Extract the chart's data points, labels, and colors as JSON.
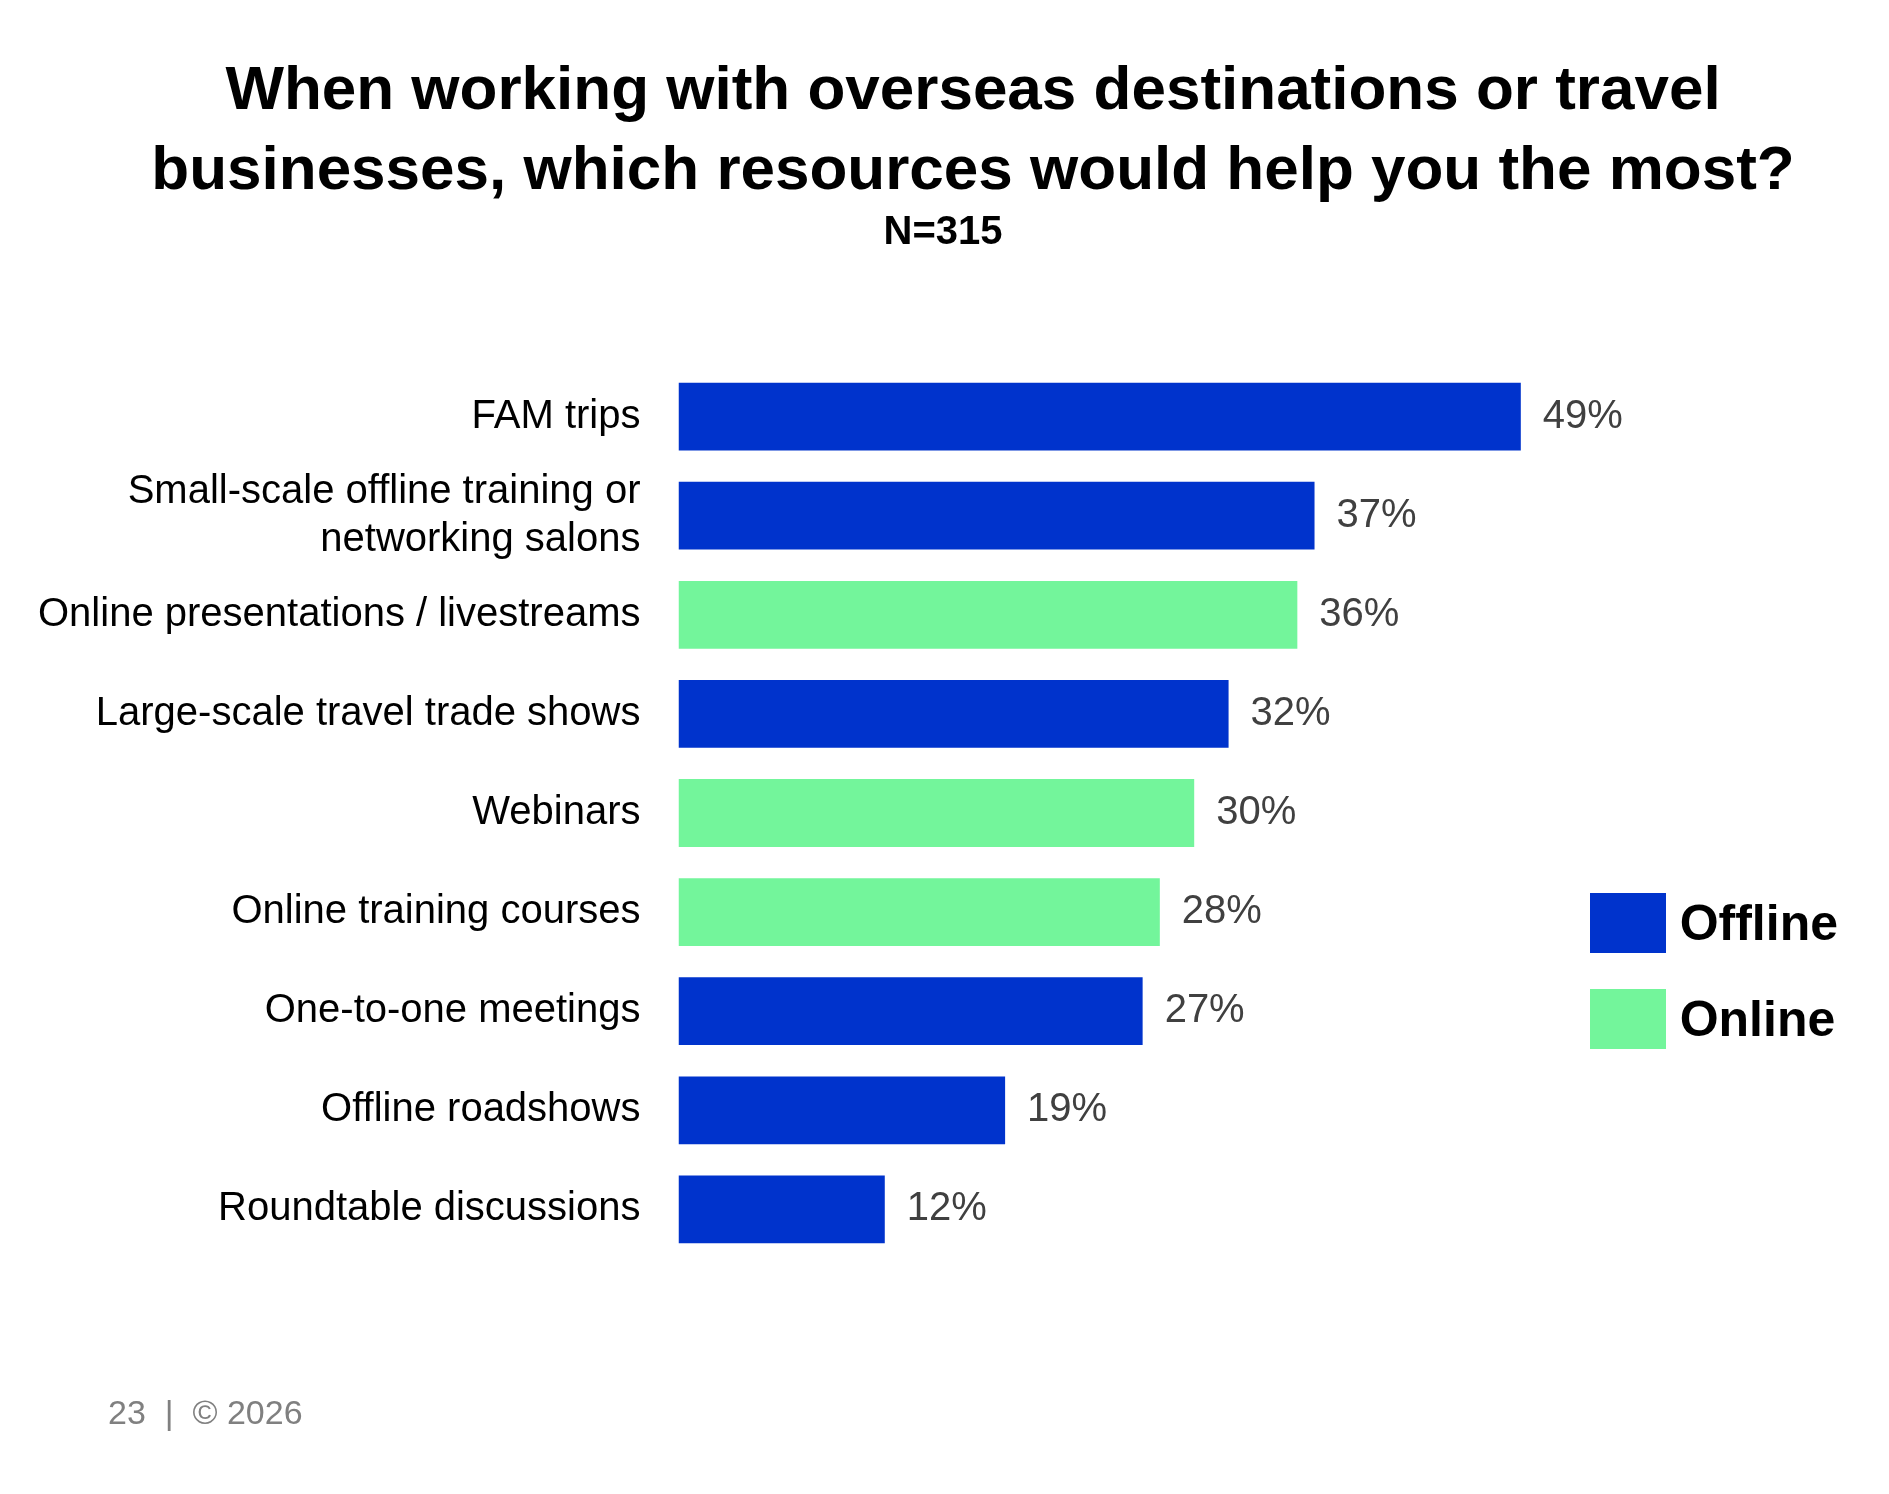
{
  "chart_data": {
    "type": "bar",
    "orientation": "horizontal",
    "stacked": true,
    "title": "When working with overseas destinations or travel businesses, which resources would help you the most?",
    "subtitle": "N=315",
    "categories": [
      "FAM trips",
      "Small-scale offline training or networking salons",
      "Online presentations / livestreams",
      "Large-scale travel trade shows",
      "Webinars",
      "Online training courses",
      "One-to-one meetings",
      "Offline roadshows",
      "Roundtable discussions"
    ],
    "series": [
      {
        "name": "Offline",
        "color": "#0033cc",
        "values": [
          49,
          37,
          null,
          32,
          null,
          null,
          27,
          19,
          12
        ],
        "value_labels": [
          "49%",
          "37%",
          null,
          "32%",
          null,
          null,
          "27%",
          "19%",
          "12%"
        ]
      },
      {
        "name": "Online",
        "color": "#73f59b",
        "values": [
          null,
          null,
          36,
          null,
          30,
          28,
          null,
          null,
          null
        ],
        "value_labels": [
          null,
          null,
          "36%",
          null,
          "30%",
          "28%",
          null,
          null,
          null
        ]
      }
    ],
    "legend": "right",
    "grid": false,
    "annotations": [
      "23  |  © 2026"
    ]
  }
}
